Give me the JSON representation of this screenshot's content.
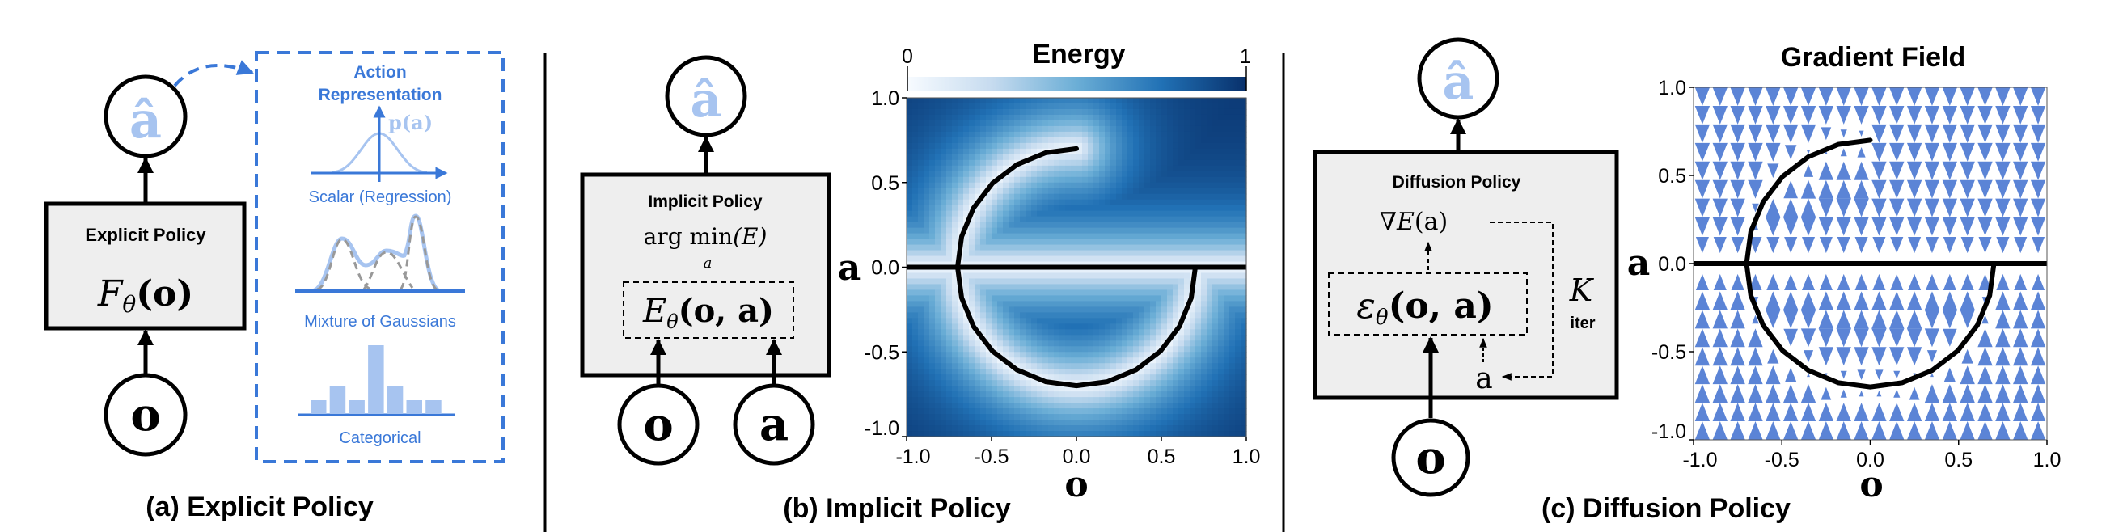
{
  "colors": {
    "action_hat": "#a7c4f0",
    "accent_blue": "#3a78d8",
    "light_blue": "#a7c4f0",
    "box_fill": "#eeeeee",
    "gradient_arrows": "#5b84d6",
    "component_gray": "#999999"
  },
  "panels": {
    "a": {
      "caption": "(a) Explicit Policy",
      "box_title": "Explicit Policy",
      "formula": {
        "fn": "F",
        "sub": "θ",
        "args": "(o)"
      },
      "output": "â",
      "input": "o",
      "action_rep": {
        "title_line1": "Action",
        "title_line2": "Representation",
        "density_label": "p(a)",
        "scalar_label": "Scalar (Regression)",
        "mixture_label": "Mixture of Gaussians",
        "categorical_label": "Categorical",
        "categorical_values": [
          1,
          2,
          1,
          5,
          2,
          1,
          1
        ]
      }
    },
    "b": {
      "caption": "(b) Implicit Policy",
      "box_title": "Implicit Policy",
      "objective": {
        "op": "arg min",
        "sub": "a",
        "args": "(E)"
      },
      "energy": {
        "fn": "E",
        "sub": "θ",
        "args": "(o, a)"
      },
      "output": "â",
      "inputs": [
        "o",
        "a"
      ]
    },
    "c": {
      "caption": "(c) Diffusion Policy",
      "box_title": "Diffusion Policy",
      "gradient": {
        "nabla": "∇",
        "fn": "E",
        "args": "(a)"
      },
      "noise_pred": {
        "fn": "ε",
        "sub": "θ",
        "args": "(o, a)"
      },
      "loop_var": "a",
      "loop": {
        "K": "K",
        "sub": "iter"
      },
      "output": "â",
      "input": "o"
    }
  },
  "chart_data": [
    {
      "type": "heatmap",
      "title": "Energy",
      "colorbar": {
        "min_label": "0",
        "max_label": "1",
        "colormap": "Blues"
      },
      "xlabel": "o",
      "ylabel": "a",
      "xlim": [
        -1,
        1
      ],
      "ylim": [
        -1,
        1
      ],
      "xticks": [
        "-1.0",
        "-0.5",
        "0.0",
        "0.5",
        "1.0"
      ],
      "yticks": [
        "1.0",
        "0.5",
        "0.0",
        "-0.5",
        "-1.0"
      ],
      "grid": false,
      "curve_color": "#000000"
    },
    {
      "type": "quiver",
      "title": "Gradient Field",
      "xlabel": "o",
      "ylabel": "a",
      "xlim": [
        -1,
        1
      ],
      "ylim": [
        -1,
        1
      ],
      "xticks": [
        "-1.0",
        "-0.5",
        "0.0",
        "0.5",
        "1.0"
      ],
      "yticks": [
        "1.0",
        "0.5",
        "0.0",
        "-0.5",
        "-1.0"
      ],
      "grid": false,
      "arrow_direction": "vertical"
    }
  ],
  "data_manifold": {
    "line": [
      [
        -1,
        0
      ],
      [
        1,
        0
      ]
    ],
    "arc": [
      [
        0,
        0.7
      ],
      [
        -0.181,
        0.676
      ],
      [
        -0.35,
        0.606
      ],
      [
        -0.495,
        0.495
      ],
      [
        -0.606,
        0.35
      ],
      [
        -0.676,
        0.181
      ],
      [
        -0.7,
        0
      ],
      [
        -0.676,
        -0.181
      ],
      [
        -0.606,
        -0.35
      ],
      [
        -0.495,
        -0.495
      ],
      [
        -0.35,
        -0.606
      ],
      [
        -0.181,
        -0.676
      ],
      [
        0,
        -0.7
      ],
      [
        0.181,
        -0.676
      ],
      [
        0.35,
        -0.606
      ],
      [
        0.495,
        -0.495
      ],
      [
        0.606,
        -0.35
      ],
      [
        0.676,
        -0.181
      ],
      [
        0.7,
        0
      ]
    ]
  }
}
